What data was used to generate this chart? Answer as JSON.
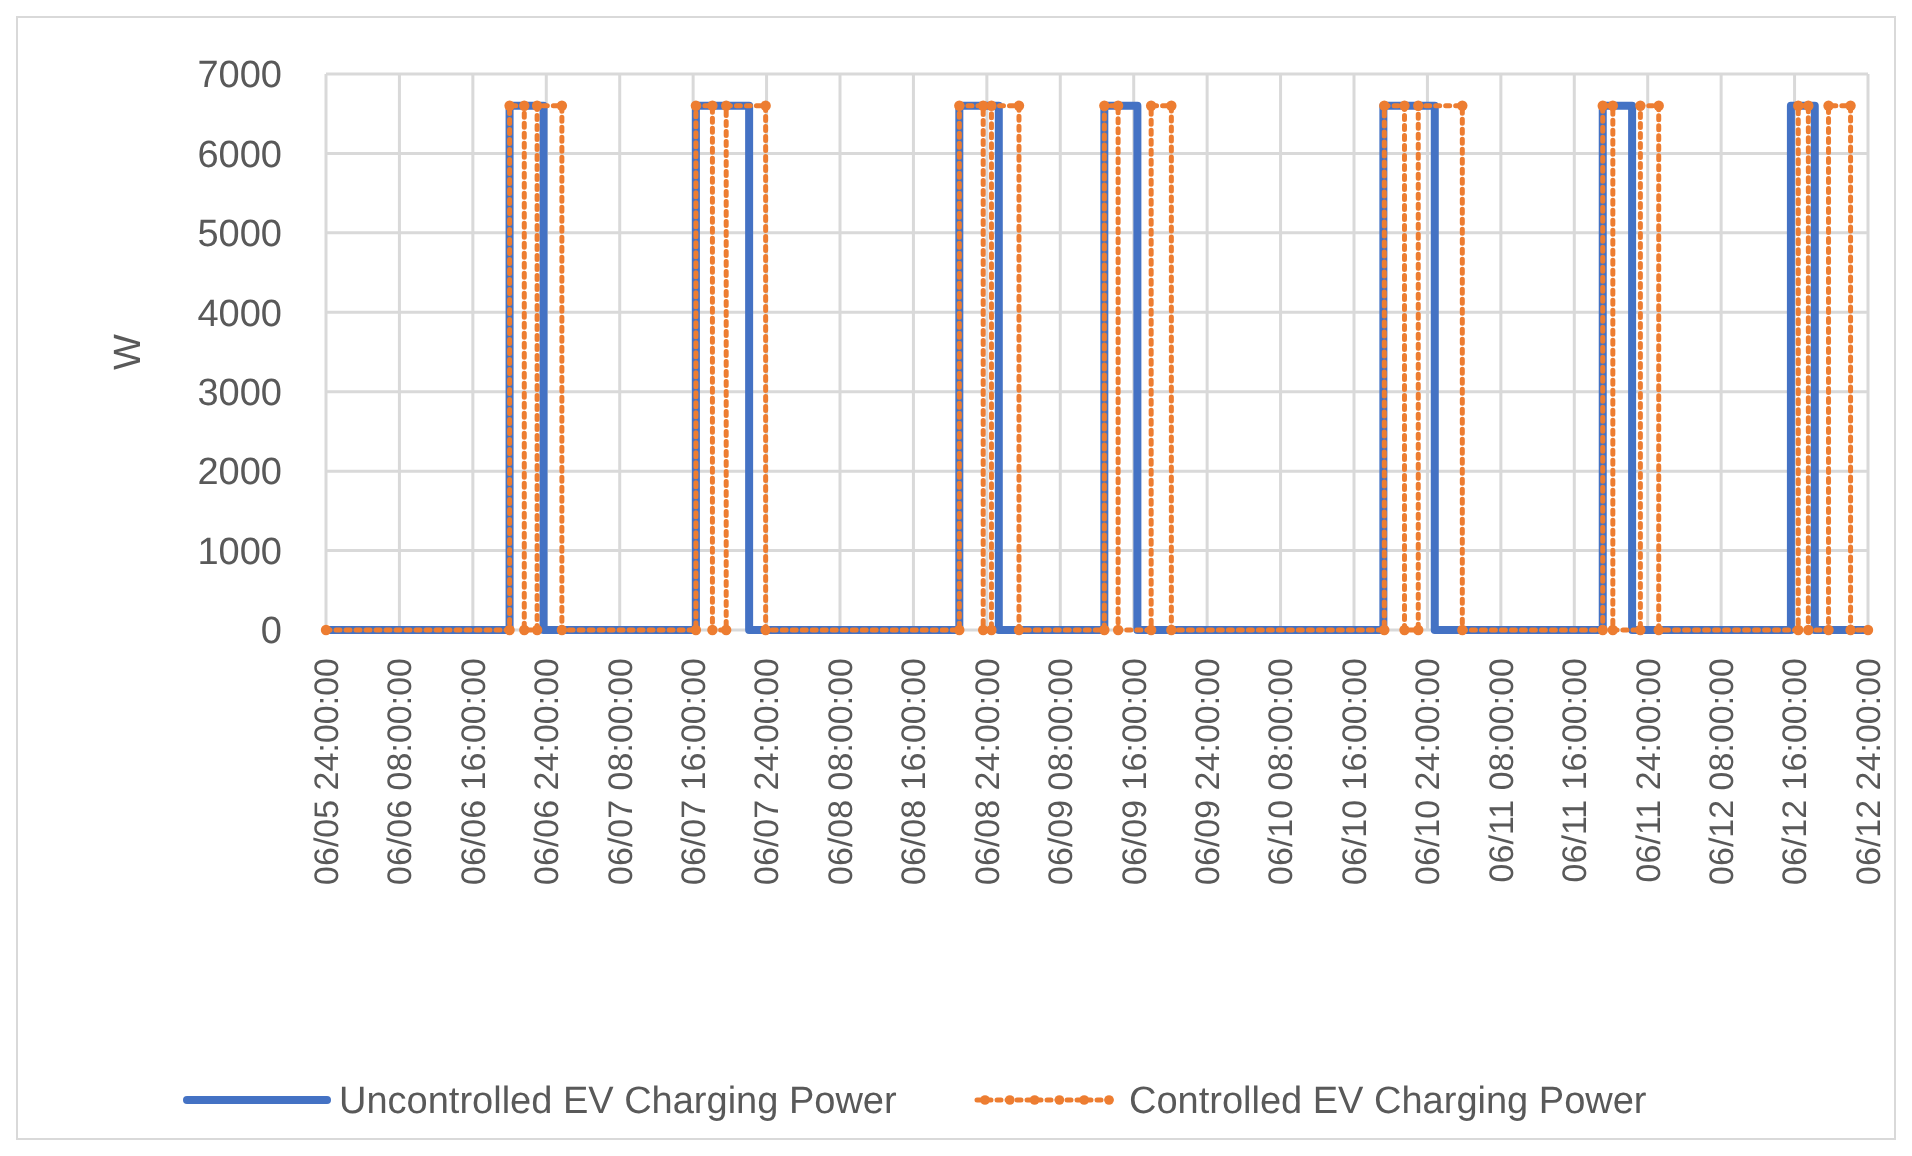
{
  "chart_data": {
    "type": "line",
    "ylabel": "W",
    "xlim": [
      "--06-06T00:00",
      "--06-13T00:00"
    ],
    "ylim": [
      0,
      7000
    ],
    "yticks": [
      0,
      1000,
      2000,
      3000,
      4000,
      5000,
      6000,
      7000
    ],
    "xticks": [
      {
        "value": "--06-06T00:00",
        "label": "06/05 24:00:00"
      },
      {
        "value": "--06-06T08:00",
        "label": "06/06 08:00:00"
      },
      {
        "value": "--06-06T16:00",
        "label": "06/06 16:00:00"
      },
      {
        "value": "--06-07T00:00",
        "label": "06/06 24:00:00"
      },
      {
        "value": "--06-07T08:00",
        "label": "06/07 08:00:00"
      },
      {
        "value": "--06-07T16:00",
        "label": "06/07 16:00:00"
      },
      {
        "value": "--06-08T00:00",
        "label": "06/07 24:00:00"
      },
      {
        "value": "--06-08T08:00",
        "label": "06/08 08:00:00"
      },
      {
        "value": "--06-08T16:00",
        "label": "06/08 16:00:00"
      },
      {
        "value": "--06-09T00:00",
        "label": "06/08 24:00:00"
      },
      {
        "value": "--06-09T08:00",
        "label": "06/09 08:00:00"
      },
      {
        "value": "--06-09T16:00",
        "label": "06/09 16:00:00"
      },
      {
        "value": "--06-10T00:00",
        "label": "06/09 24:00:00"
      },
      {
        "value": "--06-10T08:00",
        "label": "06/10 08:00:00"
      },
      {
        "value": "--06-10T16:00",
        "label": "06/10 16:00:00"
      },
      {
        "value": "--06-11T00:00",
        "label": "06/10 24:00:00"
      },
      {
        "value": "--06-11T08:00",
        "label": "06/11 08:00:00"
      },
      {
        "value": "--06-11T16:00",
        "label": "06/11 16:00:00"
      },
      {
        "value": "--06-12T00:00",
        "label": "06/11 24:00:00"
      },
      {
        "value": "--06-12T08:00",
        "label": "06/12 08:00:00"
      },
      {
        "value": "--06-12T16:00",
        "label": "06/12 16:00:00"
      },
      {
        "value": "--06-13T00:00",
        "label": "06/12 24:00:00"
      }
    ],
    "grid": true,
    "legend": "bottom",
    "series": [
      {
        "name": "Uncontrolled EV Charging Power",
        "color": "#4472c4",
        "line_style": "solid",
        "marker": "none",
        "x": [
          "--06-06T00:00",
          "--06-06T20:00",
          "--06-06T20:00",
          "--06-06T23:42",
          "--06-06T23:42",
          "--06-07T16:18",
          "--06-07T16:18",
          "--06-07T22:06",
          "--06-07T22:06",
          "--06-08T21:00",
          "--06-08T21:00",
          "--06-09T01:18",
          "--06-09T01:18",
          "--06-09T12:48",
          "--06-09T12:48",
          "--06-09T16:24",
          "--06-09T16:24",
          "--06-10T19:12",
          "--06-10T19:12",
          "--06-11T00:48",
          "--06-11T00:48",
          "--06-11T19:06",
          "--06-11T19:06",
          "--06-11T22:18",
          "--06-11T22:18",
          "--06-12T15:36",
          "--06-12T15:36",
          "--06-12T18:12",
          "--06-12T18:12",
          "--06-13T00:00"
        ],
        "values": [
          0,
          0,
          6600,
          6600,
          0,
          0,
          6600,
          6600,
          0,
          0,
          6600,
          6600,
          0,
          0,
          6600,
          6600,
          0,
          0,
          6600,
          6600,
          0,
          0,
          6600,
          6600,
          0,
          0,
          6600,
          6600,
          0,
          0
        ]
      },
      {
        "name": "Controlled EV Charging Power",
        "color": "#ed7d31",
        "line_style": "dotted",
        "marker": "circle",
        "x": [
          "--06-06T00:00",
          "--06-06T20:00",
          "--06-06T20:00",
          "--06-06T21:36",
          "--06-06T21:36",
          "--06-06T23:00",
          "--06-06T23:00",
          "--06-07T01:42",
          "--06-07T01:42",
          "--06-07T16:18",
          "--06-07T16:18",
          "--06-07T18:06",
          "--06-07T18:06",
          "--06-07T19:36",
          "--06-07T19:36",
          "--06-07T23:54",
          "--06-07T23:54",
          "--06-08T21:00",
          "--06-08T21:00",
          "--06-08T23:36",
          "--06-08T23:36",
          "--06-09T00:30",
          "--06-09T00:30",
          "--06-09T03:30",
          "--06-09T03:30",
          "--06-09T12:48",
          "--06-09T12:48",
          "--06-09T14:18",
          "--06-09T14:18",
          "--06-09T17:54",
          "--06-09T17:54",
          "--06-09T20:06",
          "--06-09T20:06",
          "--06-10T19:18",
          "--06-10T19:18",
          "--06-10T21:30",
          "--06-10T21:30",
          "--06-10T23:00",
          "--06-10T23:00",
          "--06-11T03:48",
          "--06-11T03:48",
          "--06-11T19:06",
          "--06-11T19:06",
          "--06-11T20:12",
          "--06-11T20:12",
          "--06-11T23:12",
          "--06-11T23:12",
          "--06-12T01:12",
          "--06-12T01:12",
          "--06-12T16:24",
          "--06-12T16:24",
          "--06-12T17:30",
          "--06-12T17:30",
          "--06-12T19:42",
          "--06-12T19:42",
          "--06-12T22:06",
          "--06-12T22:06",
          "--06-13T00:00"
        ],
        "values": [
          0,
          0,
          6600,
          6600,
          0,
          0,
          6600,
          6600,
          0,
          0,
          6600,
          6600,
          0,
          0,
          6600,
          6600,
          0,
          0,
          6600,
          6600,
          0,
          0,
          6600,
          6600,
          0,
          0,
          6600,
          6600,
          0,
          0,
          6600,
          6600,
          0,
          0,
          6600,
          6600,
          0,
          0,
          6600,
          6600,
          0,
          0,
          6600,
          6600,
          0,
          0,
          6600,
          6600,
          0,
          0,
          6600,
          6600,
          0,
          0,
          6600,
          6600,
          0,
          0
        ]
      }
    ]
  }
}
